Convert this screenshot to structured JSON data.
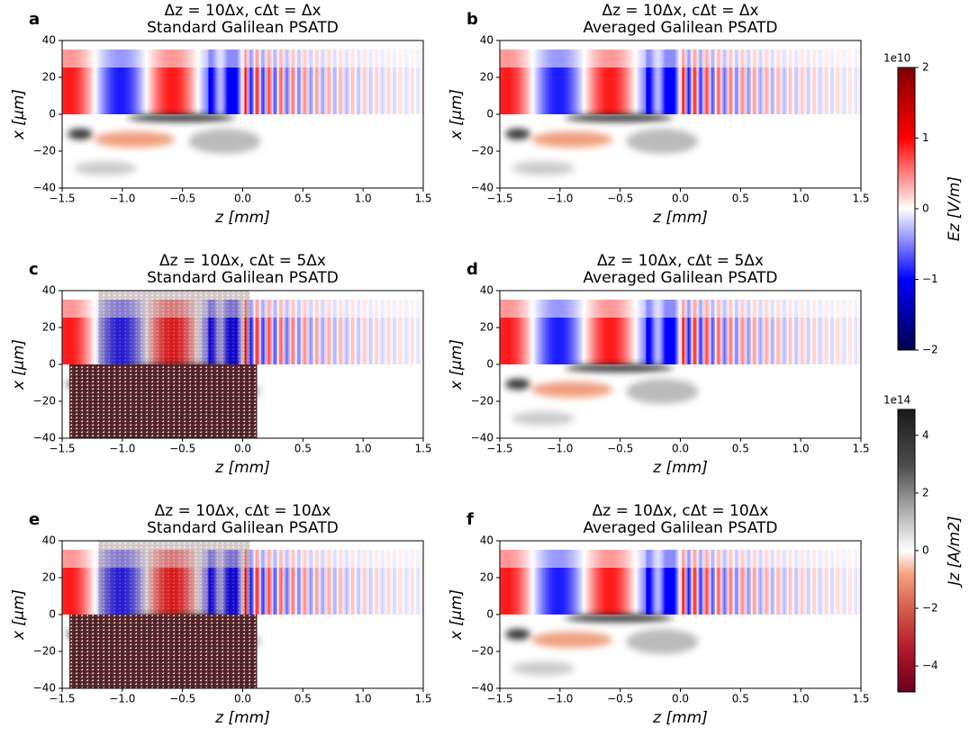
{
  "chart_data": [
    {
      "type": "heatmap",
      "panel_label": "a",
      "title": "Δz = 10Δx, cΔt = Δx",
      "subtitle": "Standard Galilean PSATD",
      "x_label": "z [mm]",
      "y_label": "x [μm]",
      "numerical_noise": false,
      "xlim": [
        -1.5,
        1.5
      ],
      "xticks": [
        {
          "value": -1.5,
          "label": "−1.5"
        },
        {
          "value": -1.0,
          "label": "−1.0"
        },
        {
          "value": -0.5,
          "label": "−0.5"
        },
        {
          "value": 0,
          "label": "0.0"
        },
        0.5,
        {
          "value": 1,
          "label": "1.0"
        },
        1.5
      ],
      "ylim": [
        -40,
        40
      ],
      "yticks": [
        {
          "value": -40,
          "label": "−40"
        },
        {
          "value": -20,
          "label": "−20"
        },
        0,
        20,
        40
      ]
    },
    {
      "type": "heatmap",
      "panel_label": "b",
      "title": "Δz = 10Δx, cΔt = Δx",
      "subtitle": "Averaged Galilean PSATD",
      "x_label": "z [mm]",
      "y_label": "x [μm]",
      "numerical_noise": false,
      "xlim": [
        -1.5,
        1.5
      ],
      "xticks": [
        {
          "value": -1.5,
          "label": "−1.5"
        },
        {
          "value": -1.0,
          "label": "−1.0"
        },
        {
          "value": -0.5,
          "label": "−0.5"
        },
        {
          "value": 0,
          "label": "0.0"
        },
        0.5,
        {
          "value": 1,
          "label": "1.0"
        },
        1.5
      ],
      "ylim": [
        -40,
        40
      ],
      "yticks": [
        {
          "value": -40,
          "label": "−40"
        },
        {
          "value": -20,
          "label": "−20"
        },
        0,
        20,
        40
      ]
    },
    {
      "type": "heatmap",
      "panel_label": "c",
      "title": "Δz = 10Δx, cΔt = 5Δx",
      "subtitle": "Standard Galilean PSATD",
      "x_label": "z [mm]",
      "y_label": "x [μm]",
      "numerical_noise": true,
      "xlim": [
        -1.5,
        1.5
      ],
      "xticks": [
        {
          "value": -1.5,
          "label": "−1.5"
        },
        {
          "value": -1.0,
          "label": "−1.0"
        },
        {
          "value": -0.5,
          "label": "−0.5"
        },
        {
          "value": 0,
          "label": "0.0"
        },
        0.5,
        {
          "value": 1,
          "label": "1.0"
        },
        1.5
      ],
      "ylim": [
        -40,
        40
      ],
      "yticks": [
        {
          "value": -40,
          "label": "−40"
        },
        {
          "value": -20,
          "label": "−20"
        },
        0,
        20,
        40
      ]
    },
    {
      "type": "heatmap",
      "panel_label": "d",
      "title": "Δz = 10Δx, cΔt = 5Δx",
      "subtitle": "Averaged Galilean PSATD",
      "x_label": "z [mm]",
      "y_label": "x [μm]",
      "numerical_noise": false,
      "xlim": [
        -1.5,
        1.5
      ],
      "xticks": [
        {
          "value": -1.5,
          "label": "−1.5"
        },
        {
          "value": -1.0,
          "label": "−1.0"
        },
        {
          "value": -0.5,
          "label": "−0.5"
        },
        {
          "value": 0,
          "label": "0.0"
        },
        0.5,
        {
          "value": 1,
          "label": "1.0"
        },
        1.5
      ],
      "ylim": [
        -40,
        40
      ],
      "yticks": [
        {
          "value": -40,
          "label": "−40"
        },
        {
          "value": -20,
          "label": "−20"
        },
        0,
        20,
        40
      ]
    },
    {
      "type": "heatmap",
      "panel_label": "e",
      "title": "Δz = 10Δx, cΔt = 10Δx",
      "subtitle": "Standard Galilean PSATD",
      "x_label": "z [mm]",
      "y_label": "x [μm]",
      "numerical_noise": true,
      "xlim": [
        -1.5,
        1.5
      ],
      "xticks": [
        {
          "value": -1.5,
          "label": "−1.5"
        },
        {
          "value": -1.0,
          "label": "−1.0"
        },
        {
          "value": -0.5,
          "label": "−0.5"
        },
        {
          "value": 0,
          "label": "0.0"
        },
        0.5,
        {
          "value": 1,
          "label": "1.0"
        },
        1.5
      ],
      "ylim": [
        -40,
        40
      ],
      "yticks": [
        {
          "value": -40,
          "label": "−40"
        },
        {
          "value": -20,
          "label": "−20"
        },
        0,
        20,
        40
      ]
    },
    {
      "type": "heatmap",
      "panel_label": "f",
      "title": "Δz = 10Δx, cΔt = 10Δx",
      "subtitle": "Averaged Galilean PSATD",
      "x_label": "z [mm]",
      "y_label": "x [μm]",
      "numerical_noise": false,
      "xlim": [
        -1.5,
        1.5
      ],
      "xticks": [
        {
          "value": -1.5,
          "label": "−1.5"
        },
        {
          "value": -1.0,
          "label": "−1.0"
        },
        {
          "value": -0.5,
          "label": "−0.5"
        },
        {
          "value": 0,
          "label": "0.0"
        },
        0.5,
        {
          "value": 1,
          "label": "1.0"
        },
        1.5
      ],
      "ylim": [
        -40,
        40
      ],
      "yticks": [
        {
          "value": -40,
          "label": "−40"
        },
        {
          "value": -20,
          "label": "−20"
        },
        0,
        20,
        40
      ]
    },
    {
      "type": "colorbar",
      "colormap": "seismic",
      "label": "Ez [V/m]",
      "offset_text": "1e10",
      "ylim": [
        -2,
        2
      ],
      "yticks": [
        {
          "value": -2,
          "label": "−2"
        },
        {
          "value": -1,
          "label": "−1"
        },
        0,
        1,
        2
      ]
    },
    {
      "type": "colorbar",
      "colormap": "RdGy",
      "label": "Jz [A/m2]",
      "offset_text": "1e14",
      "ylim": [
        -4.9,
        4.9
      ],
      "yticks": [
        {
          "value": -4,
          "label": "−4"
        },
        {
          "value": -2,
          "label": "−2"
        },
        0,
        2,
        4
      ]
    }
  ]
}
